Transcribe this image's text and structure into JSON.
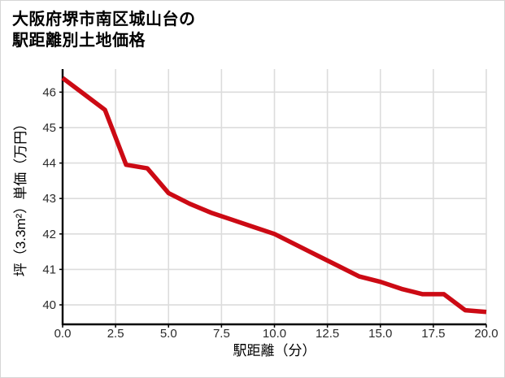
{
  "header": {
    "title_line1": "大阪府堺市南区城山台の",
    "title_line2": "駅距離別土地価格"
  },
  "chart_data": {
    "type": "line",
    "title": "大阪府堺市南区城山台の駅距離別土地価格",
    "xlabel": "駅距離（分）",
    "ylabel": "坪（3.3m²）単価（万円）",
    "x": [
      0,
      1,
      2,
      3,
      4,
      5,
      6,
      7,
      8,
      9,
      10,
      11,
      12,
      13,
      14,
      15,
      16,
      17,
      18,
      19,
      20
    ],
    "values": [
      46.4,
      45.95,
      45.5,
      43.95,
      43.85,
      43.15,
      42.85,
      42.6,
      42.4,
      42.2,
      42.0,
      41.7,
      41.4,
      41.1,
      40.8,
      40.65,
      40.45,
      40.3,
      40.3,
      39.85,
      39.8
    ],
    "xlim": [
      0,
      20
    ],
    "ylim": [
      39.45,
      46.65
    ],
    "xticks": [
      0,
      2.5,
      5,
      7.5,
      10,
      12.5,
      15,
      17.5,
      20
    ],
    "xtick_labels": [
      "0.0",
      "2.5",
      "5.0",
      "7.5",
      "10.0",
      "12.5",
      "15.0",
      "17.5",
      "20.0"
    ],
    "yticks": [
      40,
      41,
      42,
      43,
      44,
      45,
      46
    ],
    "ytick_labels": [
      "40",
      "41",
      "42",
      "43",
      "44",
      "45",
      "46"
    ],
    "grid": true,
    "legend": false,
    "colors": {
      "line": "#cc0a14",
      "grid": "#dcdcdc",
      "axis": "#000000",
      "tick_label": "#2b2b2b",
      "axis_label": "#000000",
      "background": "#ffffff",
      "border": "#d6d6d6"
    }
  }
}
